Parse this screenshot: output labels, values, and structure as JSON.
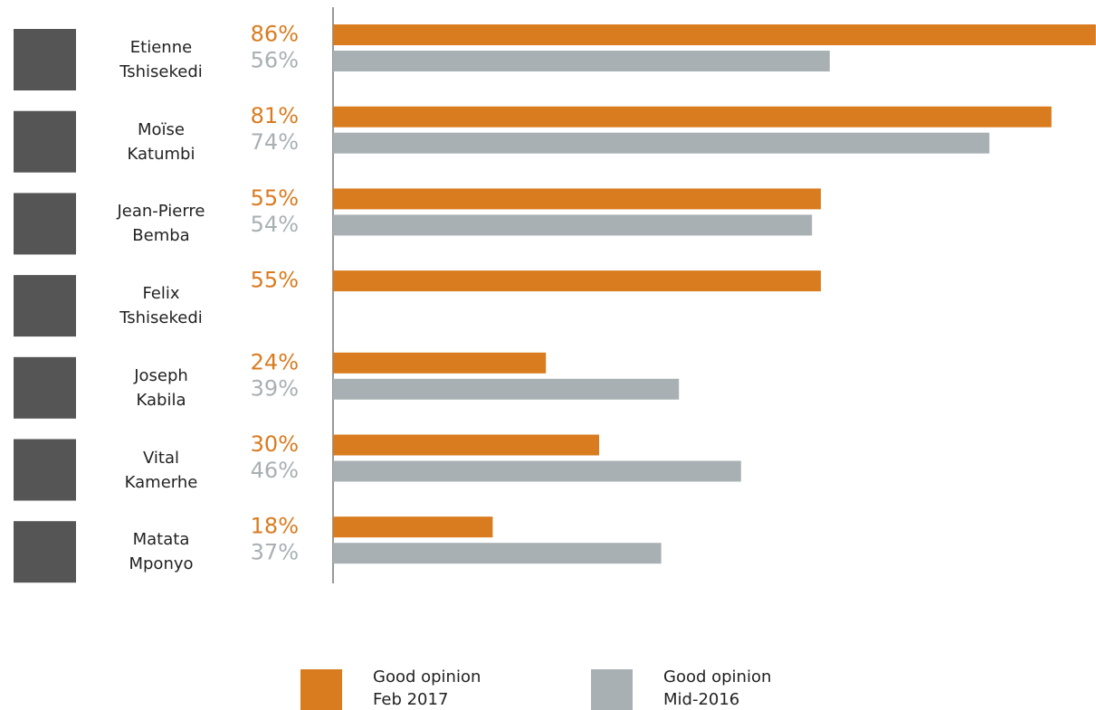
{
  "chart_data": {
    "type": "grouped-hbar",
    "categories": [
      "Etienne\nTshisekedi",
      "Moïse\nKatumbi",
      "Jean-Pierre\nBemba",
      "Felix\nTshisekedi",
      "Joseph\nKabila",
      "Vital\nKamerhe",
      "Matata\nMponyo"
    ],
    "series": [
      {
        "name": "Good opinion\nFeb 2017",
        "color": "#d97b1f",
        "values": [
          86,
          81,
          55,
          55,
          24,
          30,
          18
        ],
        "value_labels": [
          "86%",
          "81%",
          "55%",
          "55%",
          "24%",
          "30%",
          "18%"
        ]
      },
      {
        "name": "Good opinion\nMid-2016",
        "color": "#a8b0b3",
        "values": [
          56,
          74,
          54,
          null,
          39,
          46,
          37
        ],
        "value_labels": [
          "56%",
          "74%",
          "54%",
          null,
          "39%",
          "46%",
          "37%"
        ]
      }
    ]
  }
}
